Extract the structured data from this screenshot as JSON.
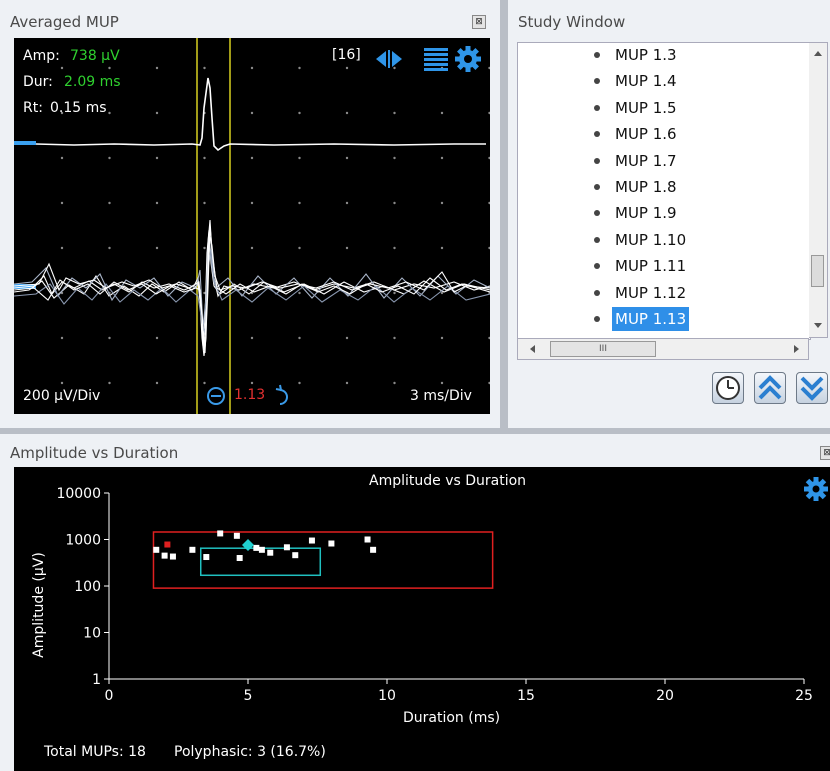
{
  "averaged_mup": {
    "title": "Averaged MUP",
    "amp_label": "Amp:",
    "amp_value": "738 µV",
    "dur_label": "Dur:",
    "dur_value": "2.09 ms",
    "rt_label": "Rt:",
    "rt_value": "0.15 ms",
    "count_badge": "[16]",
    "vertical_scale": "200 µV/Div",
    "horizontal_scale": "3 ms/Div",
    "cursor_value": "1.13",
    "colors": {
      "highlight": "#2fd12f",
      "cursor": "#d8d020",
      "red": "#e23030",
      "accent": "#1f8fe0"
    }
  },
  "study_window": {
    "title": "Study Window",
    "items": [
      "MUP 1.3",
      "MUP 1.4",
      "MUP 1.5",
      "MUP 1.6",
      "MUP 1.7",
      "MUP 1.8",
      "MUP 1.9",
      "MUP 1.10",
      "MUP 1.11",
      "MUP 1.12",
      "MUP 1.13"
    ],
    "selected": "MUP 1.13",
    "hscroll_grip": "III"
  },
  "amp_duration_panel": {
    "title": "Amplitude vs Duration",
    "footer_total": "Total MUPs: 18",
    "footer_poly": "Polyphasic: 3 (16.7%)"
  },
  "chart_data": {
    "type": "scatter",
    "title": "Amplitude vs Duration",
    "xlabel": "Duration (ms)",
    "ylabel": "Amplitude (µV)",
    "xlim": [
      0,
      25
    ],
    "ylim": [
      1,
      10000
    ],
    "y_scale": "log",
    "x_ticks": [
      0,
      5,
      10,
      15,
      20,
      25
    ],
    "y_ticks": [
      1,
      10,
      100,
      1000,
      10000
    ],
    "y_tick_labels": [
      "1",
      "10",
      "100",
      "1000",
      "10000"
    ],
    "series": [
      {
        "color": "#ffffff",
        "points": [
          [
            1.7,
            600
          ],
          [
            2.0,
            450
          ],
          [
            2.3,
            430
          ],
          [
            3.0,
            600
          ],
          [
            3.5,
            420
          ],
          [
            4.0,
            1350
          ],
          [
            4.6,
            1200
          ],
          [
            4.7,
            400
          ],
          [
            5.3,
            660
          ],
          [
            5.5,
            600
          ],
          [
            5.8,
            520
          ],
          [
            6.4,
            680
          ],
          [
            6.7,
            460
          ],
          [
            7.3,
            950
          ],
          [
            8.0,
            820
          ],
          [
            9.3,
            1000
          ],
          [
            9.5,
            600
          ]
        ]
      },
      {
        "color": "#e02020",
        "points": [
          [
            2.1,
            780
          ]
        ]
      },
      {
        "color": "#20d0d0",
        "marker": "diamond",
        "points": [
          [
            5.0,
            760
          ]
        ]
      }
    ],
    "reference_boxes": [
      {
        "color": "#e02020",
        "x_range": [
          1.6,
          13.8
        ],
        "y_range": [
          90,
          1450
        ]
      },
      {
        "color": "#20c0c0",
        "x_range": [
          3.3,
          7.6
        ],
        "y_range": [
          170,
          650
        ]
      }
    ]
  }
}
